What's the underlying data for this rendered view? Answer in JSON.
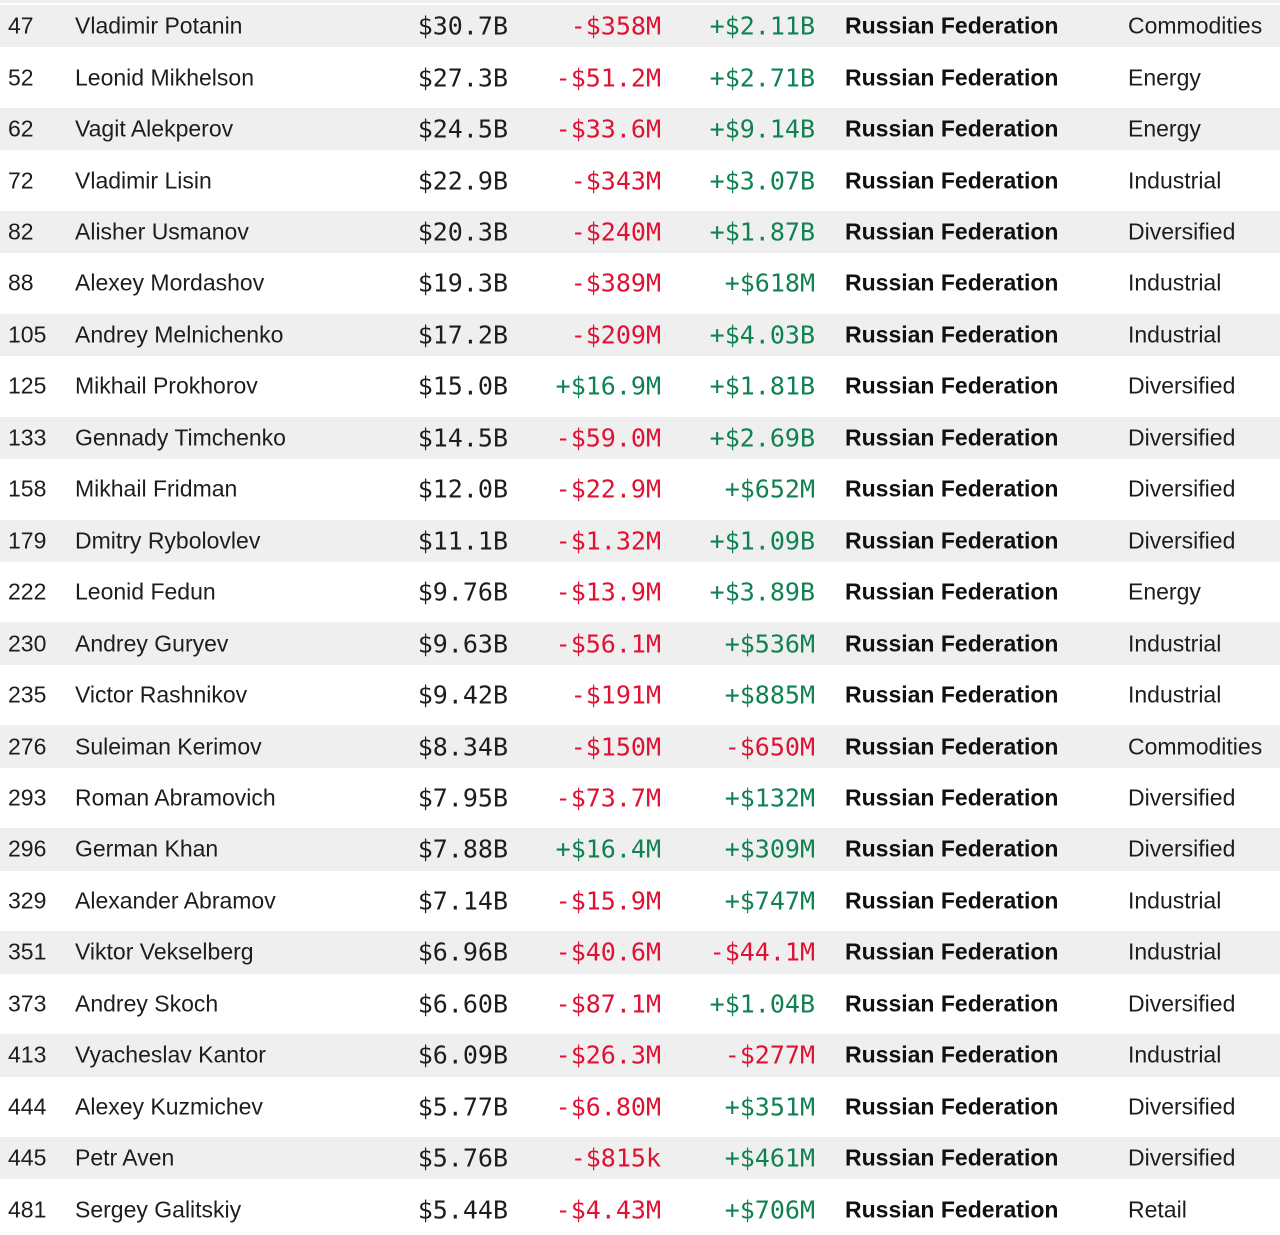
{
  "colors": {
    "negative": "#e01233",
    "positive": "#108252",
    "row_alt_bg": "#efefef",
    "text": "#1d1d1d"
  },
  "table": {
    "columns": [
      "rank",
      "name",
      "net_worth",
      "daily_change",
      "ytd_change",
      "country",
      "industry"
    ],
    "rows": [
      {
        "rank": "47",
        "name": "Vladimir Potanin",
        "net_worth": "$30.7B",
        "daily_change": "-$358M",
        "ytd_change": "+$2.11B",
        "country": "Russian Federation",
        "industry": "Commodities"
      },
      {
        "rank": "52",
        "name": "Leonid Mikhelson",
        "net_worth": "$27.3B",
        "daily_change": "-$51.2M",
        "ytd_change": "+$2.71B",
        "country": "Russian Federation",
        "industry": "Energy"
      },
      {
        "rank": "62",
        "name": "Vagit Alekperov",
        "net_worth": "$24.5B",
        "daily_change": "-$33.6M",
        "ytd_change": "+$9.14B",
        "country": "Russian Federation",
        "industry": "Energy"
      },
      {
        "rank": "72",
        "name": "Vladimir Lisin",
        "net_worth": "$22.9B",
        "daily_change": "-$343M",
        "ytd_change": "+$3.07B",
        "country": "Russian Federation",
        "industry": "Industrial"
      },
      {
        "rank": "82",
        "name": "Alisher Usmanov",
        "net_worth": "$20.3B",
        "daily_change": "-$240M",
        "ytd_change": "+$1.87B",
        "country": "Russian Federation",
        "industry": "Diversified"
      },
      {
        "rank": "88",
        "name": "Alexey Mordashov",
        "net_worth": "$19.3B",
        "daily_change": "-$389M",
        "ytd_change": "+$618M",
        "country": "Russian Federation",
        "industry": "Industrial"
      },
      {
        "rank": "105",
        "name": "Andrey Melnichenko",
        "net_worth": "$17.2B",
        "daily_change": "-$209M",
        "ytd_change": "+$4.03B",
        "country": "Russian Federation",
        "industry": "Industrial"
      },
      {
        "rank": "125",
        "name": "Mikhail Prokhorov",
        "net_worth": "$15.0B",
        "daily_change": "+$16.9M",
        "ytd_change": "+$1.81B",
        "country": "Russian Federation",
        "industry": "Diversified"
      },
      {
        "rank": "133",
        "name": "Gennady Timchenko",
        "net_worth": "$14.5B",
        "daily_change": "-$59.0M",
        "ytd_change": "+$2.69B",
        "country": "Russian Federation",
        "industry": "Diversified"
      },
      {
        "rank": "158",
        "name": "Mikhail Fridman",
        "net_worth": "$12.0B",
        "daily_change": "-$22.9M",
        "ytd_change": "+$652M",
        "country": "Russian Federation",
        "industry": "Diversified"
      },
      {
        "rank": "179",
        "name": "Dmitry Rybolovlev",
        "net_worth": "$11.1B",
        "daily_change": "-$1.32M",
        "ytd_change": "+$1.09B",
        "country": "Russian Federation",
        "industry": "Diversified"
      },
      {
        "rank": "222",
        "name": "Leonid Fedun",
        "net_worth": "$9.76B",
        "daily_change": "-$13.9M",
        "ytd_change": "+$3.89B",
        "country": "Russian Federation",
        "industry": "Energy"
      },
      {
        "rank": "230",
        "name": "Andrey Guryev",
        "net_worth": "$9.63B",
        "daily_change": "-$56.1M",
        "ytd_change": "+$536M",
        "country": "Russian Federation",
        "industry": "Industrial"
      },
      {
        "rank": "235",
        "name": "Victor Rashnikov",
        "net_worth": "$9.42B",
        "daily_change": "-$191M",
        "ytd_change": "+$885M",
        "country": "Russian Federation",
        "industry": "Industrial"
      },
      {
        "rank": "276",
        "name": "Suleiman Kerimov",
        "net_worth": "$8.34B",
        "daily_change": "-$150M",
        "ytd_change": "-$650M",
        "country": "Russian Federation",
        "industry": "Commodities"
      },
      {
        "rank": "293",
        "name": "Roman Abramovich",
        "net_worth": "$7.95B",
        "daily_change": "-$73.7M",
        "ytd_change": "+$132M",
        "country": "Russian Federation",
        "industry": "Diversified"
      },
      {
        "rank": "296",
        "name": "German Khan",
        "net_worth": "$7.88B",
        "daily_change": "+$16.4M",
        "ytd_change": "+$309M",
        "country": "Russian Federation",
        "industry": "Diversified"
      },
      {
        "rank": "329",
        "name": "Alexander Abramov",
        "net_worth": "$7.14B",
        "daily_change": "-$15.9M",
        "ytd_change": "+$747M",
        "country": "Russian Federation",
        "industry": "Industrial"
      },
      {
        "rank": "351",
        "name": "Viktor Vekselberg",
        "net_worth": "$6.96B",
        "daily_change": "-$40.6M",
        "ytd_change": "-$44.1M",
        "country": "Russian Federation",
        "industry": "Industrial"
      },
      {
        "rank": "373",
        "name": "Andrey Skoch",
        "net_worth": "$6.60B",
        "daily_change": "-$87.1M",
        "ytd_change": "+$1.04B",
        "country": "Russian Federation",
        "industry": "Diversified"
      },
      {
        "rank": "413",
        "name": "Vyacheslav Kantor",
        "net_worth": "$6.09B",
        "daily_change": "-$26.3M",
        "ytd_change": "-$277M",
        "country": "Russian Federation",
        "industry": "Industrial"
      },
      {
        "rank": "444",
        "name": "Alexey Kuzmichev",
        "net_worth": "$5.77B",
        "daily_change": "-$6.80M",
        "ytd_change": "+$351M",
        "country": "Russian Federation",
        "industry": "Diversified"
      },
      {
        "rank": "445",
        "name": "Petr Aven",
        "net_worth": "$5.76B",
        "daily_change": "-$815k",
        "ytd_change": "+$461M",
        "country": "Russian Federation",
        "industry": "Diversified"
      },
      {
        "rank": "481",
        "name": "Sergey Galitskiy",
        "net_worth": "$5.44B",
        "daily_change": "-$4.43M",
        "ytd_change": "+$706M",
        "country": "Russian Federation",
        "industry": "Retail"
      }
    ]
  }
}
